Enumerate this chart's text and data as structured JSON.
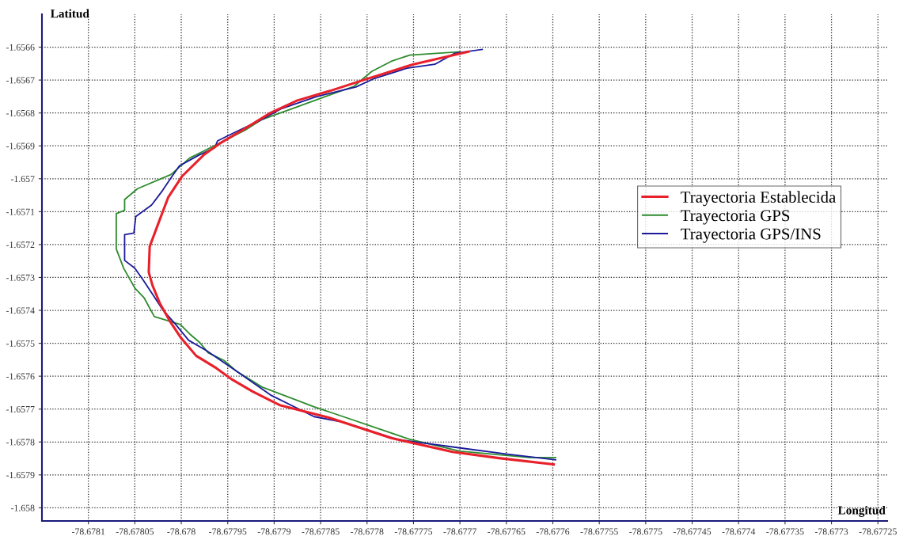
{
  "chart_data": {
    "type": "line",
    "xlabel": "Longitud",
    "ylabel": "Latitud",
    "xlim": [
      -78.67815,
      -78.67724
    ],
    "ylim": [
      -1.65804,
      -1.6565
    ],
    "xticks": [
      -78.6781,
      -78.67805,
      -78.678,
      -78.67795,
      -78.6779,
      -78.67785,
      -78.6778,
      -78.67775,
      -78.6777,
      -78.67765,
      -78.6776,
      -78.67755,
      -78.6775,
      -78.67745,
      -78.6774,
      -78.67735,
      -78.6773,
      -78.67725
    ],
    "yticks": [
      -1.6566,
      -1.6567,
      -1.6568,
      -1.6569,
      -1.657,
      -1.6571,
      -1.6572,
      -1.6573,
      -1.6574,
      -1.6575,
      -1.6576,
      -1.6577,
      -1.6578,
      -1.6579,
      -1.658
    ],
    "grid": true,
    "legend": "right",
    "line_style": "solid",
    "marker": "none",
    "series": [
      {
        "name": "Trayectoria Establecida",
        "color": "#e8202a",
        "x": [
          -78.677691,
          -78.67775,
          -78.677804,
          -78.67784,
          -78.677875,
          -78.677904,
          -78.677934,
          -78.677957,
          -78.677976,
          -78.677999,
          -78.678014,
          -78.678023,
          -78.678034,
          -78.678035,
          -78.678031,
          -78.678023,
          -78.678012,
          -78.678001,
          -78.677984,
          -78.677962,
          -78.677946,
          -78.677923,
          -78.677894,
          -78.677841,
          -78.677774,
          -78.677708,
          -78.677658,
          -78.677599
        ],
        "values": [
          -1.656614,
          -1.656652,
          -1.6567,
          -1.656733,
          -1.656762,
          -1.6568,
          -1.656852,
          -1.65689,
          -1.656928,
          -1.656992,
          -1.657056,
          -1.657123,
          -1.657206,
          -1.657284,
          -1.657324,
          -1.657379,
          -1.657434,
          -1.657481,
          -1.657538,
          -1.657576,
          -1.657609,
          -1.657647,
          -1.657688,
          -1.657726,
          -1.657788,
          -1.65783,
          -1.657849,
          -1.657868
        ]
      },
      {
        "name": "Trayectoria GPS",
        "color": "#2e8b2e",
        "x": [
          -78.6777,
          -78.677754,
          -78.677774,
          -78.677795,
          -78.677814,
          -78.67784,
          -78.677875,
          -78.677914,
          -78.677931,
          -78.677961,
          -78.677991,
          -78.678011,
          -78.678047,
          -78.678061,
          -78.678061,
          -78.67807,
          -78.67807,
          -78.678062,
          -78.67805,
          -78.67804,
          -78.678029,
          -78.678001,
          -78.67799,
          -78.67798,
          -78.677971,
          -78.677954,
          -78.67794,
          -78.677913,
          -78.677857,
          -78.677835,
          -78.677754,
          -78.6777,
          -78.677625,
          -78.677597
        ],
        "values": [
          -1.656614,
          -1.656624,
          -1.656643,
          -1.656674,
          -1.656719,
          -1.656745,
          -1.656781,
          -1.656821,
          -1.656852,
          -1.656895,
          -1.656937,
          -1.656987,
          -1.65703,
          -1.657063,
          -1.657096,
          -1.657106,
          -1.657213,
          -1.657272,
          -1.657332,
          -1.657362,
          -1.657419,
          -1.657443,
          -1.657474,
          -1.657498,
          -1.657529,
          -1.657552,
          -1.657586,
          -1.657633,
          -1.657693,
          -1.657714,
          -1.657792,
          -1.657828,
          -1.657847,
          -1.657847
        ]
      },
      {
        "name": "Trayectoria GPS/INS",
        "color": "#1a1a9a",
        "x": [
          -78.677676,
          -78.677706,
          -78.677727,
          -78.677757,
          -78.677792,
          -78.677812,
          -78.677854,
          -78.677893,
          -78.677914,
          -78.677946,
          -78.677961,
          -78.677964,
          -78.677981,
          -78.678002,
          -78.678011,
          -78.67802,
          -78.678032,
          -78.678049,
          -78.678051,
          -78.678061,
          -78.678061,
          -78.67805,
          -78.678041,
          -78.67803,
          -78.67802,
          -78.678006,
          -78.677992,
          -78.677973,
          -78.67794,
          -78.677904,
          -78.677857,
          -78.677825,
          -78.677768,
          -78.6777,
          -78.677649,
          -78.677597
        ],
        "values": [
          -1.656607,
          -1.656619,
          -1.656652,
          -1.656664,
          -1.656695,
          -1.656721,
          -1.65675,
          -1.656788,
          -1.656821,
          -1.656864,
          -1.656885,
          -1.656906,
          -1.656928,
          -1.656961,
          -1.656997,
          -1.657035,
          -1.65708,
          -1.657115,
          -1.657165,
          -1.65717,
          -1.657248,
          -1.657272,
          -1.657308,
          -1.657355,
          -1.657398,
          -1.657443,
          -1.657491,
          -1.657522,
          -1.657586,
          -1.657657,
          -1.657723,
          -1.65774,
          -1.657792,
          -1.657818,
          -1.657837,
          -1.657854
        ]
      }
    ]
  }
}
